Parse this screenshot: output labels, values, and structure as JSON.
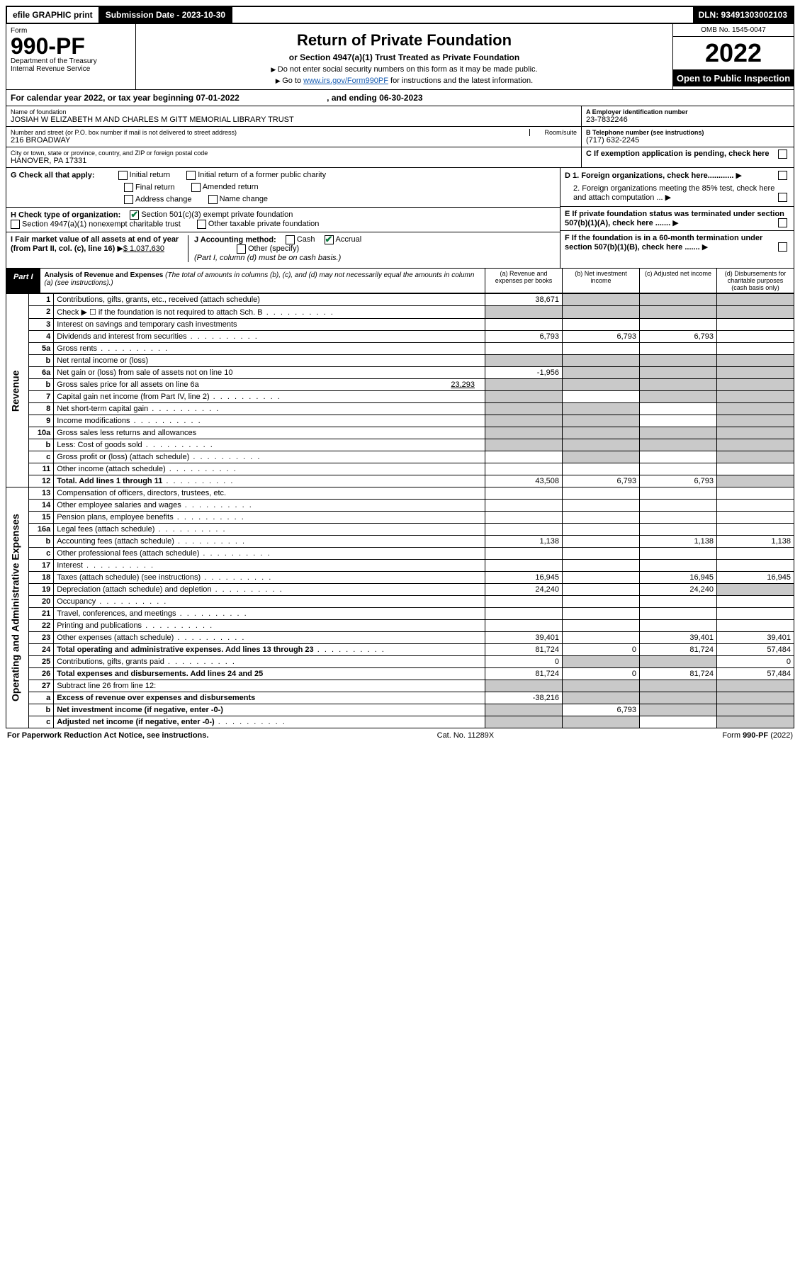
{
  "topbar": {
    "efile": "efile GRAPHIC print",
    "sub_label": "Submission Date - 2023-10-30",
    "dln": "DLN: 93491303002103"
  },
  "header": {
    "form_word": "Form",
    "form_num": "990-PF",
    "dept": "Department of the Treasury",
    "irs": "Internal Revenue Service",
    "title": "Return of Private Foundation",
    "subtitle": "or Section 4947(a)(1) Trust Treated as Private Foundation",
    "instr1": "Do not enter social security numbers on this form as it may be made public.",
    "instr2_pre": "Go to ",
    "instr2_link": "www.irs.gov/Form990PF",
    "instr2_post": " for instructions and the latest information.",
    "omb": "OMB No. 1545-0047",
    "year": "2022",
    "open": "Open to Public Inspection"
  },
  "cal": {
    "line": "For calendar year 2022, or tax year beginning 07-01-2022",
    "ending": ", and ending 06-30-2023"
  },
  "entity": {
    "name_label": "Name of foundation",
    "name": "JOSIAH W ELIZABETH M AND CHARLES M GITT MEMORIAL LIBRARY TRUST",
    "addr_label": "Number and street (or P.O. box number if mail is not delivered to street address)",
    "addr": "216 BROADWAY",
    "room_label": "Room/suite",
    "city_label": "City or town, state or province, country, and ZIP or foreign postal code",
    "city": "HANOVER, PA  17331",
    "a_label": "A Employer identification number",
    "a_val": "23-7832246",
    "b_label": "B Telephone number (see instructions)",
    "b_val": "(717) 632-2245",
    "c_label": "C If exemption application is pending, check here"
  },
  "checks": {
    "g": "G Check all that apply:",
    "g_opts": [
      "Initial return",
      "Initial return of a former public charity",
      "Final return",
      "Amended return",
      "Address change",
      "Name change"
    ],
    "h": "H Check type of organization:",
    "h1": "Section 501(c)(3) exempt private foundation",
    "h2": "Section 4947(a)(1) nonexempt charitable trust",
    "h3": "Other taxable private foundation",
    "i": "I Fair market value of all assets at end of year (from Part II, col. (c), line 16)",
    "i_val": "$  1,037,630",
    "j": "J Accounting method:",
    "j_cash": "Cash",
    "j_accr": "Accrual",
    "j_other": "Other (specify)",
    "j_note": "(Part I, column (d) must be on cash basis.)",
    "d1": "D 1. Foreign organizations, check here............",
    "d2": "2. Foreign organizations meeting the 85% test, check here and attach computation ...",
    "e": "E  If private foundation status was terminated under section 507(b)(1)(A), check here .......",
    "f": "F  If the foundation is in a 60-month termination under section 507(b)(1)(B), check here ......."
  },
  "part1": {
    "tag": "Part I",
    "title": "Analysis of Revenue and Expenses",
    "note": "(The total of amounts in columns (b), (c), and (d) may not necessarily equal the amounts in column (a) (see instructions).)",
    "cols": {
      "a": "(a)   Revenue and expenses per books",
      "b": "(b)   Net investment income",
      "c": "(c)   Adjusted net income",
      "d": "(d)   Disbursements for charitable purposes (cash basis only)"
    }
  },
  "sections": {
    "rev": "Revenue",
    "exp": "Operating and Administrative Expenses"
  },
  "rows": [
    {
      "n": "1",
      "d": "Contributions, gifts, grants, etc., received (attach schedule)",
      "a": "38,671",
      "shade_b": true,
      "shade_c": true,
      "shade_d": true
    },
    {
      "n": "2",
      "d": "Check ▶ ☐ if the foundation is not required to attach Sch. B",
      "dots": true,
      "shade_a": true,
      "shade_b": true,
      "shade_c": true,
      "shade_d": true
    },
    {
      "n": "3",
      "d": "Interest on savings and temporary cash investments"
    },
    {
      "n": "4",
      "d": "Dividends and interest from securities",
      "dots": true,
      "a": "6,793",
      "b": "6,793",
      "c": "6,793"
    },
    {
      "n": "5a",
      "d": "Gross rents",
      "dots": true
    },
    {
      "n": "b",
      "d": "Net rental income or (loss)",
      "shade_a": true,
      "shade_b": true,
      "shade_c": true,
      "shade_d": true
    },
    {
      "n": "6a",
      "d": "Net gain or (loss) from sale of assets not on line 10",
      "a": "-1,956",
      "shade_b": true,
      "shade_c": true,
      "shade_d": true
    },
    {
      "n": "b",
      "d": "Gross sales price for all assets on line 6a",
      "inline": "23,293",
      "shade_a": true,
      "shade_b": true,
      "shade_c": true,
      "shade_d": true
    },
    {
      "n": "7",
      "d": "Capital gain net income (from Part IV, line 2)",
      "dots": true,
      "shade_a": true,
      "shade_c": true,
      "shade_d": true
    },
    {
      "n": "8",
      "d": "Net short-term capital gain",
      "dots": true,
      "shade_a": true,
      "shade_b": true,
      "shade_d": true
    },
    {
      "n": "9",
      "d": "Income modifications",
      "dots": true,
      "shade_a": true,
      "shade_b": true,
      "shade_d": true
    },
    {
      "n": "10a",
      "d": "Gross sales less returns and allowances",
      "shade_a": true,
      "shade_b": true,
      "shade_c": true,
      "shade_d": true
    },
    {
      "n": "b",
      "d": "Less: Cost of goods sold",
      "dots": true,
      "shade_a": true,
      "shade_b": true,
      "shade_c": true,
      "shade_d": true
    },
    {
      "n": "c",
      "d": "Gross profit or (loss) (attach schedule)",
      "dots": true,
      "shade_b": true,
      "shade_d": true
    },
    {
      "n": "11",
      "d": "Other income (attach schedule)",
      "dots": true
    },
    {
      "n": "12",
      "d": "Total. Add lines 1 through 11",
      "dots": true,
      "bold": true,
      "a": "43,508",
      "b": "6,793",
      "c": "6,793",
      "shade_d": true
    }
  ],
  "exp_rows": [
    {
      "n": "13",
      "d": "Compensation of officers, directors, trustees, etc."
    },
    {
      "n": "14",
      "d": "Other employee salaries and wages",
      "dots": true
    },
    {
      "n": "15",
      "d": "Pension plans, employee benefits",
      "dots": true
    },
    {
      "n": "16a",
      "d": "Legal fees (attach schedule)",
      "dots": true
    },
    {
      "n": "b",
      "d": "Accounting fees (attach schedule)",
      "dots": true,
      "a": "1,138",
      "c": "1,138",
      "dv": "1,138"
    },
    {
      "n": "c",
      "d": "Other professional fees (attach schedule)",
      "dots": true
    },
    {
      "n": "17",
      "d": "Interest",
      "dots": true
    },
    {
      "n": "18",
      "d": "Taxes (attach schedule) (see instructions)",
      "dots": true,
      "a": "16,945",
      "c": "16,945",
      "dv": "16,945"
    },
    {
      "n": "19",
      "d": "Depreciation (attach schedule) and depletion",
      "dots": true,
      "a": "24,240",
      "c": "24,240",
      "shade_d": true
    },
    {
      "n": "20",
      "d": "Occupancy",
      "dots": true
    },
    {
      "n": "21",
      "d": "Travel, conferences, and meetings",
      "dots": true
    },
    {
      "n": "22",
      "d": "Printing and publications",
      "dots": true
    },
    {
      "n": "23",
      "d": "Other expenses (attach schedule)",
      "dots": true,
      "a": "39,401",
      "c": "39,401",
      "dv": "39,401"
    },
    {
      "n": "24",
      "d": "Total operating and administrative expenses. Add lines 13 through 23",
      "dots": true,
      "bold": true,
      "a": "81,724",
      "b": "0",
      "c": "81,724",
      "dv": "57,484"
    },
    {
      "n": "25",
      "d": "Contributions, gifts, grants paid",
      "dots": true,
      "a": "0",
      "shade_b": true,
      "shade_c": true,
      "dv": "0"
    },
    {
      "n": "26",
      "d": "Total expenses and disbursements. Add lines 24 and 25",
      "bold": true,
      "a": "81,724",
      "b": "0",
      "c": "81,724",
      "dv": "57,484"
    },
    {
      "n": "27",
      "d": "Subtract line 26 from line 12:",
      "shade_a": true,
      "shade_b": true,
      "shade_c": true,
      "shade_d": true
    },
    {
      "n": "a",
      "d": "Excess of revenue over expenses and disbursements",
      "bold": true,
      "a": "-38,216",
      "shade_b": true,
      "shade_c": true,
      "shade_d": true
    },
    {
      "n": "b",
      "d": "Net investment income (if negative, enter -0-)",
      "bold": true,
      "shade_a": true,
      "b": "6,793",
      "shade_c": true,
      "shade_d": true
    },
    {
      "n": "c",
      "d": "Adjusted net income (if negative, enter -0-)",
      "dots": true,
      "bold": true,
      "shade_a": true,
      "shade_b": true,
      "shade_d": true
    }
  ],
  "footer": {
    "left": "For Paperwork Reduction Act Notice, see instructions.",
    "mid": "Cat. No. 11289X",
    "right": "Form 990-PF (2022)"
  }
}
